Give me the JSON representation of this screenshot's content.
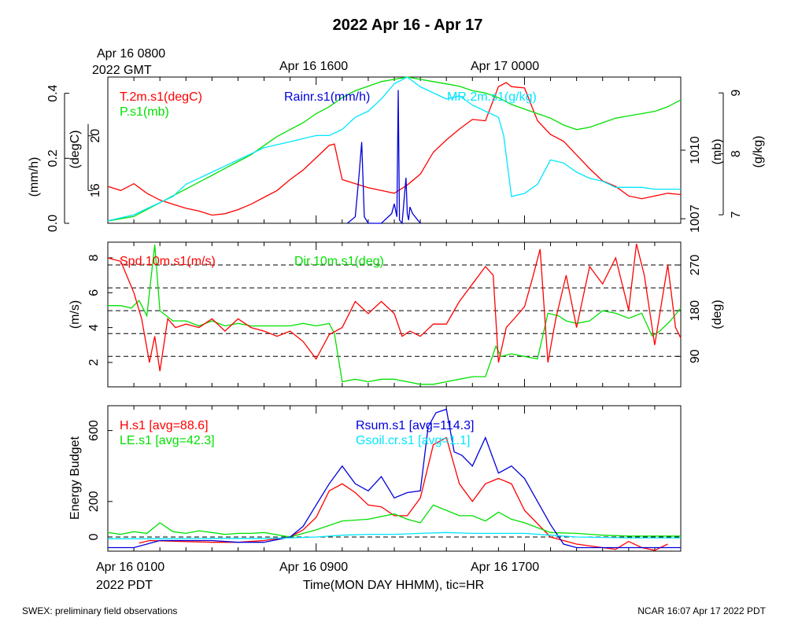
{
  "title": "2022 Apr 16 - Apr 17",
  "top_time_labels": {
    "gmt_first": "Apr 16 0800",
    "gmt_year": "2022 GMT",
    "gmt_mid": "Apr 16 1600",
    "gmt_last": "Apr 17 0000"
  },
  "bottom_time_labels": {
    "pdt_first": "Apr 16 0100",
    "pdt_year": "2022 PDT",
    "pdt_mid": "Apr 16 0900",
    "pdt_last": "Apr 16 1700",
    "axis_label": "Time(MON DAY HHMM), tic=HR"
  },
  "footer": {
    "left": "SWEX: preliminary field observations",
    "right": "NCAR 16:07 Apr 17 2022 PDT"
  },
  "colors": {
    "red": "#ff0000",
    "green": "#00e000",
    "blue": "#0000dd",
    "cyan": "#00e6ff",
    "black": "#000000"
  },
  "chart_data": [
    {
      "type": "line",
      "x_range_hours_pdt": [
        0,
        22
      ],
      "left_axes": [
        {
          "label": "(mm/h)",
          "range": [
            0,
            0.45
          ],
          "ticks": [
            "0.0",
            "0.2",
            "0.4"
          ]
        },
        {
          "label": "(degC)",
          "range": [
            13.6,
            24.3
          ],
          "ticks": [
            "16",
            "20"
          ]
        }
      ],
      "right_axes": [
        {
          "label": "(mb)",
          "range": [
            1006.8,
            1013.2
          ],
          "ticks": [
            "1007",
            "1010"
          ]
        },
        {
          "label": "(g/kg)",
          "range": [
            6.86,
            9.26
          ],
          "ticks": [
            "7",
            "8",
            "9"
          ]
        }
      ],
      "series": [
        {
          "name": "T.2m.s1(degC)",
          "color": "red",
          "x": [
            0,
            0.5,
            1,
            1.5,
            2,
            2.5,
            3,
            3.5,
            4,
            4.5,
            5,
            5.5,
            6,
            6.5,
            7,
            7.5,
            8,
            8.5,
            8.7,
            9,
            9.5,
            10,
            10.5,
            11,
            11.5,
            12,
            12.5,
            13,
            13.5,
            14,
            14.5,
            15,
            15.3,
            15.5,
            16,
            16.5,
            17,
            17.5,
            18,
            18.5,
            19,
            19.5,
            20,
            20.5,
            21,
            21.5,
            22
          ],
          "y": [
            16.3,
            16.0,
            16.5,
            15.8,
            15.3,
            15.0,
            14.7,
            14.5,
            14.2,
            14.3,
            14.6,
            15.0,
            15.5,
            16.0,
            16.8,
            17.5,
            18.4,
            19.3,
            19.4,
            16.8,
            16.5,
            16.2,
            16.0,
            15.8,
            16.4,
            17.2,
            18.8,
            19.7,
            20.5,
            21.2,
            21.1,
            23.6,
            23.9,
            23.6,
            23.5,
            21.1,
            20.1,
            19.6,
            18.6,
            17.6,
            16.7,
            16.3,
            15.6,
            15.4,
            15.6,
            15.8,
            15.7
          ]
        },
        {
          "name": "P.s1(mb)",
          "color": "green",
          "x": [
            0,
            0.5,
            1,
            1.5,
            2,
            2.5,
            3,
            3.5,
            4,
            4.5,
            5,
            5.5,
            6,
            6.5,
            7,
            7.5,
            8,
            8.5,
            9,
            9.5,
            10,
            10.5,
            11,
            11.5,
            12,
            12.5,
            13,
            13.5,
            14,
            14.5,
            15,
            15.5,
            16,
            16.5,
            17,
            17.5,
            18,
            18.5,
            19,
            19.5,
            20,
            20.5,
            21,
            21.5,
            22
          ],
          "y": [
            1006.9,
            1007.0,
            1007.1,
            1007.4,
            1007.7,
            1008.0,
            1008.3,
            1008.6,
            1008.9,
            1009.2,
            1009.5,
            1009.8,
            1010.2,
            1010.6,
            1010.9,
            1011.2,
            1011.6,
            1011.9,
            1012.3,
            1012.6,
            1012.8,
            1013.0,
            1013.1,
            1013.2,
            1013.1,
            1013.0,
            1012.9,
            1012.8,
            1012.6,
            1012.5,
            1012.3,
            1012.0,
            1011.8,
            1011.6,
            1011.4,
            1011.1,
            1010.9,
            1011.0,
            1011.2,
            1011.4,
            1011.5,
            1011.6,
            1011.7,
            1011.9,
            1012.2
          ]
        },
        {
          "name": "MR.2m.s1(g/kg)",
          "color": "cyan",
          "x": [
            0,
            0.5,
            1,
            1.5,
            2,
            2.5,
            3,
            3.5,
            4,
            4.5,
            5,
            5.5,
            6,
            6.5,
            7,
            7.5,
            8,
            8.5,
            9,
            9.5,
            10,
            10.5,
            11,
            11.5,
            12,
            12.5,
            13,
            13.5,
            14,
            14.5,
            15,
            15.2,
            15.5,
            16,
            16.5,
            17,
            17.5,
            18,
            18.5,
            19,
            19.5,
            20,
            20.5,
            21,
            21.5,
            22
          ],
          "y": [
            6.9,
            6.95,
            7.0,
            7.1,
            7.2,
            7.3,
            7.5,
            7.6,
            7.7,
            7.8,
            7.9,
            8.0,
            8.1,
            8.15,
            8.2,
            8.25,
            8.3,
            8.3,
            8.4,
            8.6,
            8.7,
            8.9,
            9.15,
            9.26,
            9.1,
            9.0,
            8.9,
            8.95,
            8.8,
            8.7,
            8.6,
            8.3,
            7.3,
            7.35,
            7.5,
            7.9,
            7.85,
            7.7,
            7.6,
            7.55,
            7.45,
            7.45,
            7.45,
            7.42,
            7.42,
            7.42
          ]
        },
        {
          "name": "Rainr.s1(mm/h)",
          "color": "blue",
          "x": [
            9.2,
            9.5,
            9.65,
            9.75,
            9.85,
            10.0,
            10.5,
            10.9,
            11.0,
            11.1,
            11.15,
            11.2,
            11.3,
            11.45,
            11.5,
            11.55,
            11.6,
            11.7,
            11.8,
            11.9,
            12.0
          ],
          "y": [
            0,
            0.02,
            0.15,
            0.25,
            0.02,
            0,
            0,
            0.03,
            0.06,
            0.02,
            0.41,
            0.01,
            0,
            0.14,
            0.03,
            0.01,
            0.05,
            0.03,
            0.02,
            0.01,
            0
          ]
        }
      ]
    },
    {
      "type": "line",
      "x_range_hours_pdt": [
        0,
        22
      ],
      "left_axis": {
        "label": "(m/s)",
        "range": [
          0.6,
          8.9
        ],
        "ticks": [
          "2",
          "4",
          "6",
          "8"
        ]
      },
      "right_axis": {
        "label": "(deg)",
        "range": [
          30,
          315
        ],
        "ticks": [
          "90",
          "180",
          "270"
        ]
      },
      "reference_lines_deg": [
        90,
        135,
        180,
        225,
        270
      ],
      "series": [
        {
          "name": "Spd.10m.s1(m/s)",
          "color": "red",
          "x": [
            0,
            0.5,
            1,
            1.3,
            1.6,
            1.8,
            2,
            2.3,
            2.6,
            3,
            3.5,
            4,
            4.5,
            5,
            5.5,
            6,
            6.5,
            7,
            7.5,
            8,
            8.5,
            9,
            9.5,
            10,
            10.5,
            11,
            11.3,
            11.6,
            12,
            12.5,
            13,
            13.5,
            14,
            14.5,
            14.8,
            15,
            15.3,
            15.6,
            16,
            16.3,
            16.6,
            16.9,
            17.2,
            17.6,
            18,
            18.5,
            19,
            19.5,
            20,
            20.3,
            20.6,
            21,
            21.5,
            21.8,
            22
          ],
          "y": [
            8.0,
            7.8,
            6.0,
            4.5,
            2.0,
            3.5,
            1.5,
            4.5,
            4.0,
            4.2,
            4.0,
            4.5,
            3.8,
            4.5,
            4.0,
            3.8,
            3.5,
            3.8,
            3.2,
            2.2,
            3.6,
            4.0,
            5.5,
            4.8,
            5.5,
            4.8,
            3.5,
            3.8,
            3.5,
            4.2,
            4.2,
            5.5,
            6.5,
            7.5,
            7.0,
            2.0,
            4.0,
            4.5,
            5.2,
            6.8,
            8.5,
            2.0,
            4.5,
            7.0,
            4.0,
            7.5,
            6.5,
            8.0,
            5.0,
            8.8,
            7.0,
            3.0,
            7.6,
            4.0,
            3.4
          ]
        },
        {
          "name": "Dir.10m.s1(deg)",
          "color": "green",
          "x": [
            0,
            0.5,
            0.9,
            1.2,
            1.5,
            1.8,
            2,
            2.5,
            3,
            3.5,
            4,
            4.5,
            5,
            5.5,
            6,
            6.5,
            7,
            7.5,
            8,
            8.5,
            8.7,
            9,
            9.5,
            10,
            10.5,
            11,
            11.5,
            12,
            12.5,
            13,
            13.5,
            14,
            14.5,
            14.9,
            15.1,
            15.5,
            16,
            16.5,
            16.9,
            17.3,
            17.6,
            18,
            18.5,
            19,
            19.5,
            20,
            20.5,
            20.9,
            21.2,
            21.6,
            22
          ],
          "y": [
            190,
            190,
            185,
            200,
            170,
            310,
            180,
            160,
            160,
            150,
            160,
            150,
            155,
            150,
            150,
            150,
            150,
            155,
            150,
            155,
            135,
            40,
            45,
            40,
            45,
            45,
            40,
            35,
            35,
            40,
            45,
            50,
            50,
            110,
            90,
            95,
            90,
            85,
            175,
            170,
            160,
            155,
            160,
            180,
            175,
            165,
            175,
            130,
            140,
            160,
            185
          ]
        }
      ]
    },
    {
      "type": "line",
      "x_range_hours_pdt": [
        0,
        22
      ],
      "y_axis": {
        "label": "Energy Budget",
        "range": [
          -80,
          740
        ],
        "ticks": [
          "0",
          "200",
          "600"
        ]
      },
      "series": [
        {
          "name": "H.s1",
          "legend_text": "H.s1 [avg=88.6]",
          "color": "red",
          "x": [
            1.2,
            1.6,
            4,
            5,
            6,
            7,
            7.5,
            8,
            8.5,
            9,
            9.5,
            10,
            10.5,
            11,
            11.5,
            12,
            12.5,
            13,
            13.5,
            14,
            14.5,
            15,
            15.5,
            16,
            17,
            18,
            19,
            19.5,
            20,
            20.5,
            21,
            21.5
          ],
          "y": [
            -35,
            -20,
            -30,
            -30,
            -20,
            0,
            40,
            110,
            260,
            300,
            250,
            180,
            170,
            120,
            120,
            220,
            520,
            560,
            300,
            200,
            300,
            330,
            300,
            150,
            0,
            -40,
            -60,
            -70,
            -25,
            -60,
            -75,
            -40
          ]
        },
        {
          "name": "LE.s1",
          "legend_text": "LE.s1 [avg=42.3]",
          "color": "green",
          "x": [
            0,
            0.5,
            1,
            1.5,
            2,
            2.5,
            3,
            3.5,
            4,
            4.5,
            5,
            5.5,
            6,
            7,
            8,
            9,
            10,
            11,
            11.5,
            12,
            12.5,
            13,
            13.5,
            14,
            14.5,
            15,
            15.5,
            16,
            17,
            18,
            19,
            20,
            21,
            22
          ],
          "y": [
            25,
            15,
            30,
            20,
            80,
            30,
            20,
            35,
            25,
            15,
            20,
            20,
            25,
            0,
            40,
            90,
            100,
            130,
            100,
            80,
            180,
            150,
            120,
            120,
            90,
            140,
            100,
            80,
            25,
            20,
            10,
            5,
            5,
            5
          ]
        },
        {
          "name": "Rsum.s1",
          "legend_text": "Rsum.s1 [avg=114.3]",
          "color": "blue",
          "x": [
            0,
            1,
            2,
            3,
            4,
            5,
            6,
            7,
            7.5,
            8,
            8.5,
            9,
            9.5,
            10,
            10.5,
            11,
            11.5,
            12,
            12.3,
            12.6,
            13,
            13.3,
            13.6,
            14,
            14.5,
            15,
            15.5,
            16,
            16.5,
            17,
            17.5,
            18,
            19,
            20,
            21,
            22
          ],
          "y": [
            -60,
            -60,
            -20,
            -20,
            -20,
            -30,
            -30,
            0,
            60,
            180,
            300,
            400,
            300,
            260,
            340,
            220,
            250,
            260,
            620,
            700,
            720,
            480,
            460,
            400,
            560,
            360,
            400,
            330,
            200,
            70,
            -40,
            -60,
            -60,
            -60,
            -60,
            -60
          ]
        },
        {
          "name": "Gsoil.cr.s1",
          "legend_text": "Gsoil.cr.s1 [avg=1.1]",
          "color": "cyan",
          "x": [
            0,
            2,
            4,
            6,
            7,
            8,
            9,
            10,
            11,
            12,
            13,
            14,
            15,
            16,
            17,
            18,
            20,
            22
          ],
          "y": [
            -10,
            -10,
            -8,
            -8,
            -5,
            0,
            10,
            15,
            15,
            20,
            25,
            20,
            20,
            20,
            10,
            0,
            -5,
            -5
          ]
        }
      ]
    }
  ]
}
